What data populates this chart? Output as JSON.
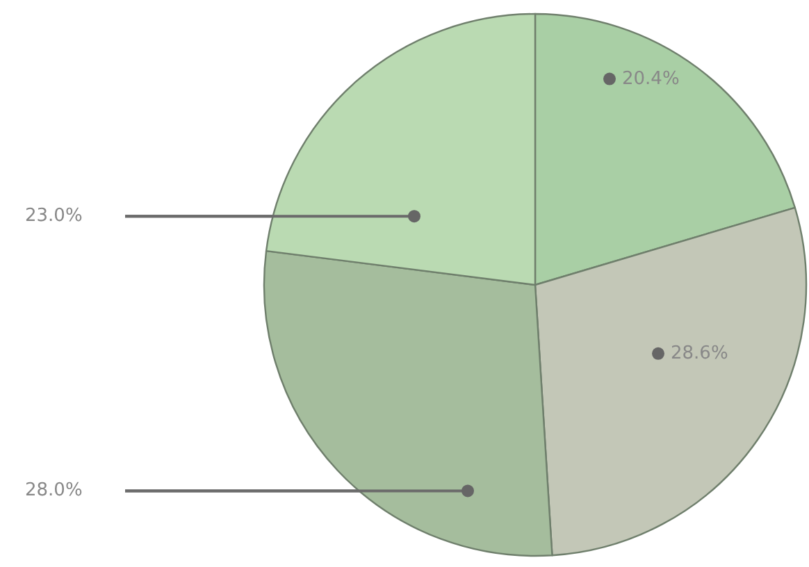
{
  "chart_data": {
    "type": "pie",
    "categories": [
      null,
      null,
      null,
      null
    ],
    "values": [
      20.4,
      28.6,
      28.0,
      23.0
    ],
    "value_labels": [
      "20.4%",
      "28.6%",
      "28.0%",
      "23.0%"
    ],
    "colors": [
      "#a9cfa5",
      "#c3c7b7",
      "#a5bd9d",
      "#badab2"
    ]
  }
}
